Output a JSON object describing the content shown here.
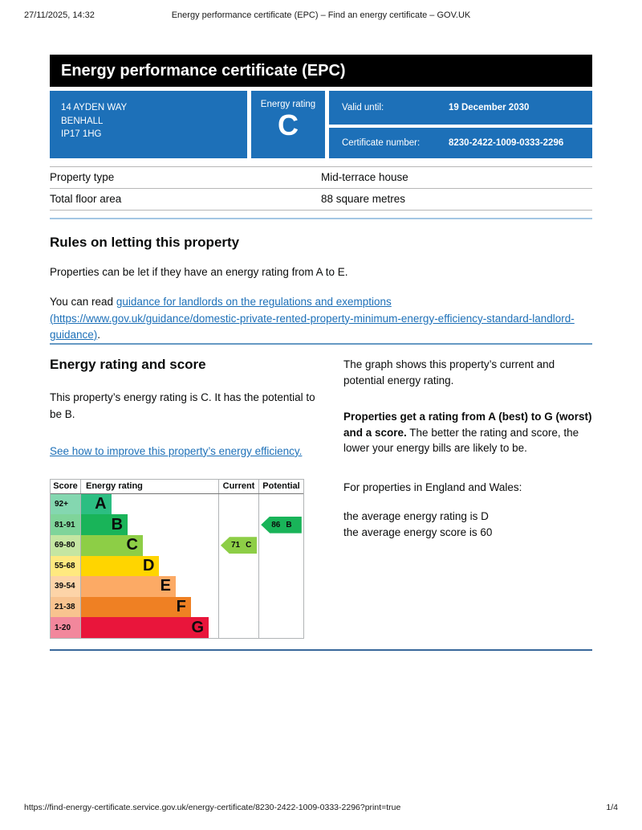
{
  "print_header": {
    "timestamp": "27/11/2025, 14:32",
    "document_title": "Energy performance certificate (EPC) – Find an energy certificate – GOV.UK"
  },
  "banner": {
    "title": "Energy performance certificate (EPC)"
  },
  "colors": {
    "govuk_blue": "#1d70b8",
    "banner_black": "#000000",
    "link_blue": "#1d70b8"
  },
  "summary": {
    "address_lines": [
      "14 AYDEN WAY",
      "BENHALL",
      "IP17 1HG"
    ],
    "energy_rating_label": "Energy rating",
    "energy_rating": "C",
    "valid_until_label": "Valid until:",
    "valid_until": "19 December 2030",
    "certificate_number_label": "Certificate number:",
    "certificate_number": "8230-2422-1009-0333-2296"
  },
  "property_table": {
    "rows": [
      {
        "label": "Property type",
        "value": "Mid-terrace house"
      },
      {
        "label": "Total floor area",
        "value": "88 square metres"
      }
    ]
  },
  "letting_section": {
    "heading": "Rules on letting this property",
    "paragraph": "Properties can be let if they have an energy rating from A to E.",
    "read_prefix": "You can read ",
    "link_text": "guidance for landlords on the regulations and exemptions (https://www.gov.uk/guidance/domestic-private-rented-property-minimum-energy-efficiency-standard-landlord-guidance)",
    "read_suffix": "."
  },
  "rating_section": {
    "heading": "Energy rating and score",
    "paragraph": "This property’s energy rating is C. It has the potential to be B.",
    "improve_link": "See how to improve this property’s energy efficiency.",
    "graph_intro": "The graph shows this property’s current and potential energy rating.",
    "rating_explain_bold": "Properties get a rating from A (best) to G (worst) and a score.",
    "rating_explain_rest": " The better the rating and score, the lower your energy bills are likely to be.",
    "england_wales": "For properties in England and Wales:",
    "average_rating_line": "the average energy rating is D",
    "average_score_line": "the average energy score is 60"
  },
  "chart_data": {
    "type": "bar",
    "title": "Energy rating and score",
    "headers": {
      "score": "Score",
      "rating": "Energy rating",
      "current": "Current",
      "potential": "Potential"
    },
    "bands": [
      {
        "score": "92+",
        "letter": "A",
        "color": "#2cbe82",
        "tint": "#84d7b0",
        "width_pct": 22
      },
      {
        "score": "81-91",
        "letter": "B",
        "color": "#19b459",
        "tint": "#7fd49a",
        "width_pct": 34
      },
      {
        "score": "69-80",
        "letter": "C",
        "color": "#8dce46",
        "tint": "#c5e6a2",
        "width_pct": 45
      },
      {
        "score": "55-68",
        "letter": "D",
        "color": "#ffd500",
        "tint": "#ffe97f",
        "width_pct": 57
      },
      {
        "score": "39-54",
        "letter": "E",
        "color": "#fcaa65",
        "tint": "#fdd4a8",
        "width_pct": 69
      },
      {
        "score": "21-38",
        "letter": "F",
        "color": "#ef8023",
        "tint": "#f8c38f",
        "width_pct": 80
      },
      {
        "score": "1-20",
        "letter": "G",
        "color": "#e9153b",
        "tint": "#f2879c",
        "width_pct": 93
      }
    ],
    "current": {
      "value": "71",
      "letter": "C",
      "band_index": 2,
      "color": "#8dce46"
    },
    "potential": {
      "value": "86",
      "letter": "B",
      "band_index": 1,
      "color": "#19b459"
    }
  },
  "footer": {
    "url": "https://find-energy-certificate.service.gov.uk/energy-certificate/8230-2422-1009-0333-2296?print=true",
    "page": "1/4"
  }
}
